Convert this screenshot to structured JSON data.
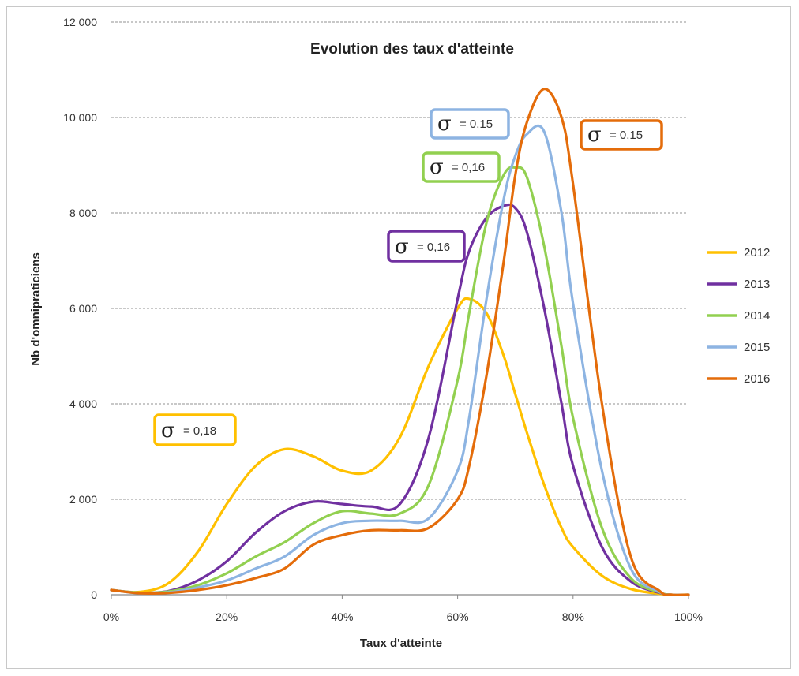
{
  "chart_data": {
    "type": "line",
    "title": "Evolution des taux d'atteinte",
    "xlabel": "Taux d'atteinte",
    "ylabel": "Nb d'omnipraticiens",
    "xlim": [
      0,
      100
    ],
    "ylim": [
      0,
      12000
    ],
    "x_ticks": [
      "0%",
      "20%",
      "40%",
      "60%",
      "80%",
      "100%"
    ],
    "y_ticks": [
      "0",
      "2 000",
      "4 000",
      "6 000",
      "8 000",
      "10 000",
      "12 000"
    ],
    "grid": "horizontal dashed",
    "legend_position": "right",
    "x": [
      0,
      5,
      10,
      15,
      20,
      25,
      30,
      35,
      40,
      45,
      50,
      55,
      60,
      62,
      65,
      68,
      70,
      72,
      75,
      78,
      80,
      85,
      90,
      95,
      97,
      100
    ],
    "series": [
      {
        "name": "2012",
        "color": "#FFC000",
        "values": [
          100,
          60,
          250,
          900,
          1900,
          2700,
          3050,
          2900,
          2600,
          2600,
          3300,
          4800,
          6000,
          6200,
          5900,
          5000,
          4200,
          3400,
          2300,
          1400,
          1000,
          400,
          120,
          20,
          0,
          0
        ]
      },
      {
        "name": "2013",
        "color": "#7030A0",
        "values": [
          100,
          40,
          80,
          300,
          700,
          1300,
          1750,
          1950,
          1900,
          1850,
          1900,
          3300,
          6200,
          7200,
          7900,
          8150,
          8100,
          7600,
          6000,
          4000,
          2700,
          1000,
          280,
          40,
          0,
          0
        ]
      },
      {
        "name": "2014",
        "color": "#92D050",
        "values": [
          100,
          40,
          70,
          200,
          450,
          800,
          1100,
          1500,
          1750,
          1700,
          1700,
          2300,
          4500,
          5900,
          7800,
          8800,
          8950,
          8750,
          7300,
          5200,
          3700,
          1400,
          350,
          50,
          0,
          0
        ]
      },
      {
        "name": "2015",
        "color": "#8DB4E2",
        "values": [
          100,
          30,
          50,
          150,
          300,
          550,
          800,
          1250,
          1500,
          1550,
          1550,
          1600,
          2600,
          3700,
          6200,
          8300,
          9200,
          9650,
          9700,
          8000,
          6100,
          2600,
          550,
          60,
          0,
          0
        ]
      },
      {
        "name": "2016",
        "color": "#E46C0A",
        "values": [
          100,
          30,
          40,
          100,
          200,
          350,
          550,
          1050,
          1250,
          1350,
          1350,
          1400,
          2000,
          2700,
          4600,
          7000,
          8800,
          9900,
          10600,
          10000,
          8600,
          4000,
          800,
          80,
          0,
          0
        ]
      }
    ],
    "annotations": [
      {
        "symbol": "σ",
        "text": "= 0,18",
        "series": "2012"
      },
      {
        "symbol": "σ",
        "text": "= 0,16",
        "series": "2013"
      },
      {
        "symbol": "σ",
        "text": "= 0,16",
        "series": "2014"
      },
      {
        "symbol": "σ",
        "text": "= 0,15",
        "series": "2015"
      },
      {
        "symbol": "σ",
        "text": "= 0,15",
        "series": "2016"
      }
    ]
  }
}
